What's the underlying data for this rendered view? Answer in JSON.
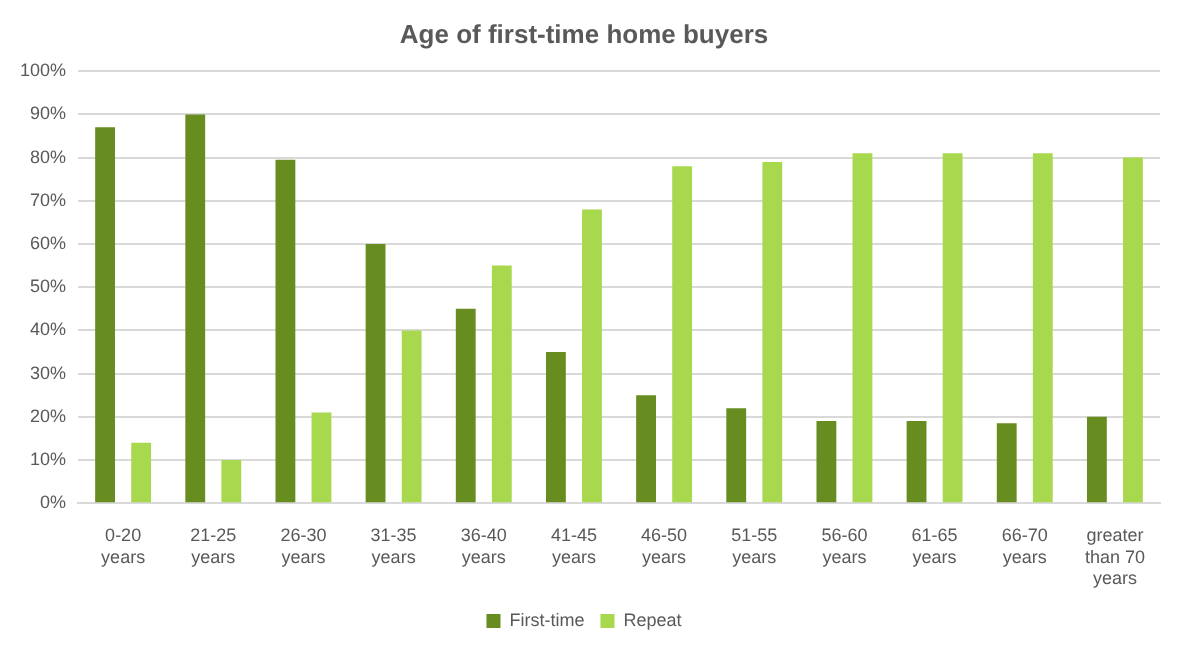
{
  "chart_data": {
    "type": "bar",
    "title": "Age of first-time home buyers",
    "categories": [
      "0-20 years",
      "21-25 years",
      "26-30 years",
      "31-35 years",
      "36-40 years",
      "41-45 years",
      "46-50 years",
      "51-55 years",
      "56-60 years",
      "61-65 years",
      "66-70 years",
      "greater than 70 years"
    ],
    "series": [
      {
        "name": "First-time",
        "color": "#678c1f",
        "values": [
          87,
          90,
          79.5,
          60,
          45,
          35,
          25,
          22,
          19,
          19,
          18.5,
          20
        ]
      },
      {
        "name": "Repeat",
        "color": "#a8d84e",
        "values": [
          14,
          10,
          21,
          40,
          55,
          68,
          78,
          79,
          81,
          81,
          81,
          80
        ]
      }
    ],
    "ylim": [
      0,
      100
    ],
    "yticks": [
      {
        "value": 0,
        "label": "0%"
      },
      {
        "value": 10,
        "label": "10%"
      },
      {
        "value": 20,
        "label": "20%"
      },
      {
        "value": 30,
        "label": "30%"
      },
      {
        "value": 40,
        "label": "40%"
      },
      {
        "value": 50,
        "label": "50%"
      },
      {
        "value": 60,
        "label": "60%"
      },
      {
        "value": 70,
        "label": "70%"
      },
      {
        "value": 80,
        "label": "80%"
      },
      {
        "value": 90,
        "label": "90%"
      },
      {
        "value": 100,
        "label": "100%"
      }
    ],
    "grid": "y",
    "legend": "bottom"
  }
}
